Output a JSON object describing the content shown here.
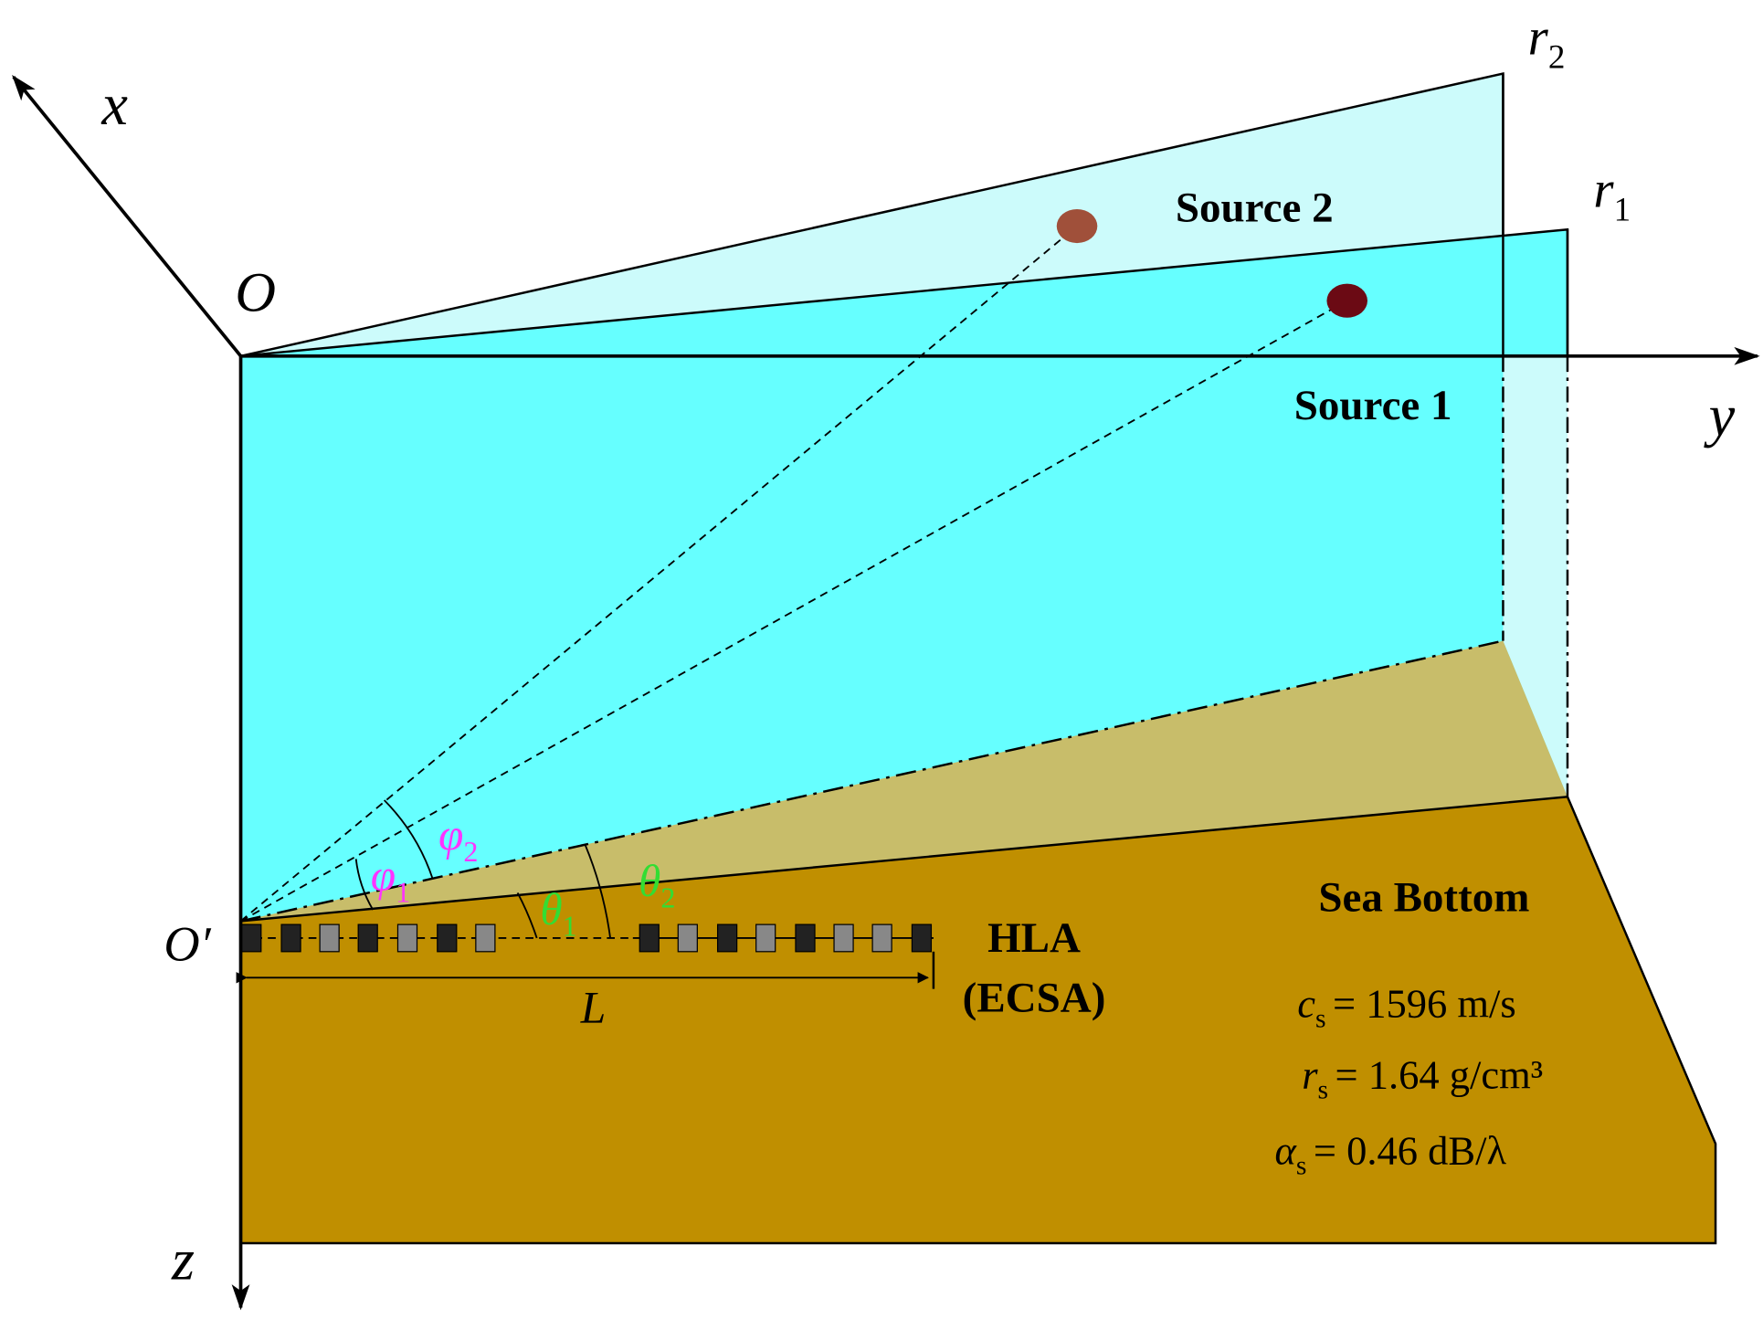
{
  "axes": {
    "x": "x",
    "y": "y",
    "z": "z",
    "origin": "O",
    "origin_prime": "O′"
  },
  "ranges": [
    {
      "symbol": "r",
      "sub": "2"
    },
    {
      "symbol": "r",
      "sub": "1"
    }
  ],
  "sources": [
    {
      "label": "Source 2"
    },
    {
      "label": "Source 1"
    }
  ],
  "angles": [
    {
      "symbol": "φ",
      "sub": "1"
    },
    {
      "symbol": "φ",
      "sub": "2"
    },
    {
      "symbol": "θ",
      "sub": "1"
    },
    {
      "symbol": "θ",
      "sub": "2"
    }
  ],
  "array": {
    "name": "HLA",
    "type": "(ECSA)",
    "length": "L"
  },
  "sea_bottom": {
    "title": "Sea Bottom",
    "parameters": [
      {
        "symbol": "c",
        "sub": "s",
        "value": "= 1596 m/s"
      },
      {
        "symbol": "r",
        "sub": "s",
        "value": "= 1.64 g/cm³"
      },
      {
        "symbol": "α",
        "sub": "s",
        "value": "= 0.46 dB/λ"
      }
    ]
  }
}
